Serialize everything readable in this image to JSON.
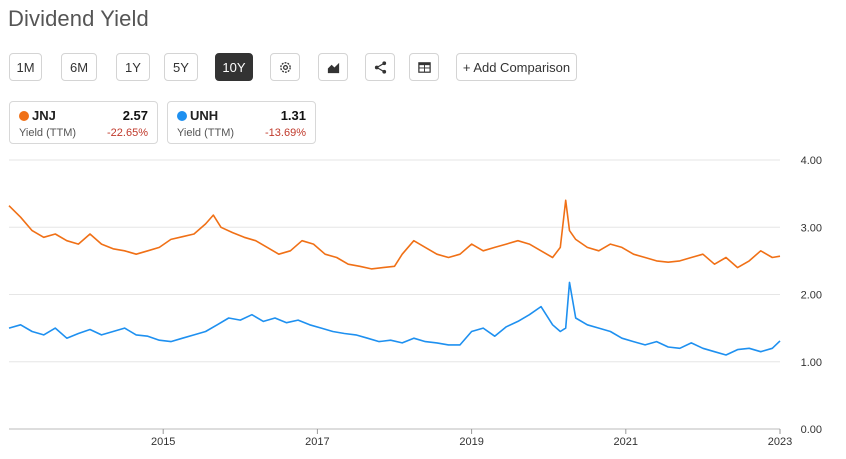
{
  "page": {
    "title": "Dividend Yield"
  },
  "toolbar": {
    "ranges": [
      "1M",
      "6M",
      "1Y",
      "5Y",
      "10Y"
    ],
    "active_range": "10Y",
    "icons": [
      "gear-icon",
      "area-chart-icon",
      "share-icon",
      "table-icon"
    ],
    "add_comparison": "+ Add Comparison"
  },
  "legend": [
    {
      "ticker": "JNJ",
      "value": "2.57",
      "label": "Yield (TTM)",
      "change": "-22.65%",
      "color": "#f07016"
    },
    {
      "ticker": "UNH",
      "value": "1.31",
      "label": "Yield (TTM)",
      "change": "-13.69%",
      "color": "#1e90f0"
    }
  ],
  "chart_data": {
    "type": "line",
    "xlim": [
      2013.0,
      2023.0
    ],
    "ylim": [
      0,
      4
    ],
    "x_ticks": [
      2015,
      2017,
      2019,
      2021,
      2023
    ],
    "x_tick_labels": [
      "2015",
      "2017",
      "2019",
      "2021",
      "2023"
    ],
    "y_ticks": [
      0,
      1,
      2,
      3,
      4
    ],
    "y_tick_labels": [
      "0.00",
      "1.00",
      "2.00",
      "3.00",
      "4.00"
    ],
    "grid": true,
    "y_axis_side": "right",
    "series": [
      {
        "name": "JNJ",
        "color": "#f07016",
        "x": [
          2013.0,
          2013.15,
          2013.3,
          2013.45,
          2013.6,
          2013.75,
          2013.9,
          2014.05,
          2014.2,
          2014.35,
          2014.5,
          2014.65,
          2014.8,
          2014.95,
          2015.1,
          2015.25,
          2015.4,
          2015.55,
          2015.65,
          2015.75,
          2015.9,
          2016.05,
          2016.2,
          2016.35,
          2016.5,
          2016.65,
          2016.8,
          2016.95,
          2017.1,
          2017.25,
          2017.4,
          2017.55,
          2017.7,
          2017.85,
          2018.0,
          2018.1,
          2018.25,
          2018.4,
          2018.55,
          2018.7,
          2018.85,
          2019.0,
          2019.15,
          2019.3,
          2019.45,
          2019.6,
          2019.75,
          2019.9,
          2020.05,
          2020.15,
          2020.22,
          2020.27,
          2020.35,
          2020.5,
          2020.65,
          2020.8,
          2020.95,
          2021.1,
          2021.25,
          2021.4,
          2021.55,
          2021.7,
          2021.85,
          2022.0,
          2022.15,
          2022.3,
          2022.45,
          2022.6,
          2022.75,
          2022.9,
          2023.0
        ],
        "values": [
          3.32,
          3.15,
          2.95,
          2.85,
          2.9,
          2.8,
          2.75,
          2.9,
          2.75,
          2.68,
          2.65,
          2.6,
          2.65,
          2.7,
          2.82,
          2.86,
          2.9,
          3.05,
          3.18,
          3.0,
          2.92,
          2.85,
          2.8,
          2.7,
          2.6,
          2.65,
          2.8,
          2.75,
          2.6,
          2.55,
          2.45,
          2.42,
          2.38,
          2.4,
          2.42,
          2.6,
          2.8,
          2.7,
          2.6,
          2.55,
          2.6,
          2.75,
          2.65,
          2.7,
          2.75,
          2.8,
          2.75,
          2.65,
          2.55,
          2.7,
          3.4,
          2.95,
          2.82,
          2.7,
          2.65,
          2.75,
          2.7,
          2.6,
          2.55,
          2.5,
          2.48,
          2.5,
          2.55,
          2.6,
          2.45,
          2.55,
          2.4,
          2.5,
          2.65,
          2.55,
          2.57
        ]
      },
      {
        "name": "UNH",
        "color": "#1e90f0",
        "x": [
          2013.0,
          2013.15,
          2013.3,
          2013.45,
          2013.6,
          2013.75,
          2013.9,
          2014.05,
          2014.2,
          2014.35,
          2014.5,
          2014.65,
          2014.8,
          2014.95,
          2015.1,
          2015.25,
          2015.4,
          2015.55,
          2015.7,
          2015.85,
          2016.0,
          2016.15,
          2016.3,
          2016.45,
          2016.6,
          2016.75,
          2016.9,
          2017.05,
          2017.2,
          2017.35,
          2017.5,
          2017.65,
          2017.8,
          2017.95,
          2018.1,
          2018.25,
          2018.4,
          2018.55,
          2018.7,
          2018.85,
          2019.0,
          2019.15,
          2019.3,
          2019.45,
          2019.6,
          2019.75,
          2019.9,
          2020.05,
          2020.15,
          2020.22,
          2020.27,
          2020.35,
          2020.5,
          2020.65,
          2020.8,
          2020.95,
          2021.1,
          2021.25,
          2021.4,
          2021.55,
          2021.7,
          2021.85,
          2022.0,
          2022.15,
          2022.3,
          2022.45,
          2022.6,
          2022.75,
          2022.9,
          2023.0
        ],
        "values": [
          1.5,
          1.55,
          1.45,
          1.4,
          1.5,
          1.35,
          1.42,
          1.48,
          1.4,
          1.45,
          1.5,
          1.4,
          1.38,
          1.32,
          1.3,
          1.35,
          1.4,
          1.45,
          1.55,
          1.65,
          1.62,
          1.7,
          1.6,
          1.65,
          1.58,
          1.62,
          1.55,
          1.5,
          1.45,
          1.42,
          1.4,
          1.35,
          1.3,
          1.32,
          1.28,
          1.35,
          1.3,
          1.28,
          1.25,
          1.25,
          1.45,
          1.5,
          1.38,
          1.52,
          1.6,
          1.7,
          1.82,
          1.55,
          1.45,
          1.5,
          2.18,
          1.65,
          1.55,
          1.5,
          1.45,
          1.35,
          1.3,
          1.25,
          1.3,
          1.22,
          1.2,
          1.28,
          1.2,
          1.15,
          1.1,
          1.18,
          1.2,
          1.15,
          1.2,
          1.31
        ]
      }
    ]
  }
}
